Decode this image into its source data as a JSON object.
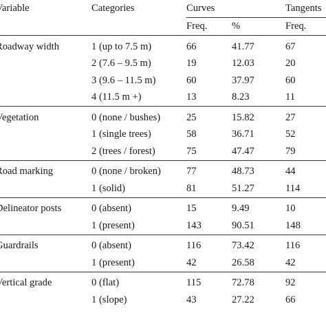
{
  "header": {
    "variable": "Variable",
    "categories": "Categories",
    "curves": "Curves",
    "tangents": "Tangents",
    "freq": "Freq.",
    "percent": "%"
  },
  "groups": [
    {
      "variable": "Roadway width",
      "rows": [
        {
          "category": "1 (up to 7.5 m)",
          "curves_freq": "66",
          "curves_pct": "41.77",
          "tangents_freq": "67"
        },
        {
          "category": "2 (7.6 – 9.5 m)",
          "curves_freq": "19",
          "curves_pct": "12.03",
          "tangents_freq": "20"
        },
        {
          "category": "3 (9.6 – 11.5 m)",
          "curves_freq": "60",
          "curves_pct": "37.97",
          "tangents_freq": "60"
        },
        {
          "category": "4 (11.5 m +)",
          "curves_freq": "13",
          "curves_pct": "8.23",
          "tangents_freq": "11"
        }
      ]
    },
    {
      "variable": "Vegetation",
      "rows": [
        {
          "category": "0 (none / bushes)",
          "curves_freq": "25",
          "curves_pct": "15.82",
          "tangents_freq": "27"
        },
        {
          "category": "1 (single trees)",
          "curves_freq": "58",
          "curves_pct": "36.71",
          "tangents_freq": "52"
        },
        {
          "category": "2 (trees / forest)",
          "curves_freq": "75",
          "curves_pct": "47.47",
          "tangents_freq": "79"
        }
      ]
    },
    {
      "variable": "Road marking",
      "rows": [
        {
          "category": "0 (none / broken)",
          "curves_freq": "77",
          "curves_pct": "48.73",
          "tangents_freq": "44"
        },
        {
          "category": "1 (solid)",
          "curves_freq": "81",
          "curves_pct": "51.27",
          "tangents_freq": "114"
        }
      ]
    },
    {
      "variable": "Delineator posts",
      "rows": [
        {
          "category": "0 (absent)",
          "curves_freq": "15",
          "curves_pct": "9.49",
          "tangents_freq": "10"
        },
        {
          "category": "1 (present)",
          "curves_freq": "143",
          "curves_pct": "90.51",
          "tangents_freq": "148"
        }
      ]
    },
    {
      "variable": "Guardrails",
      "rows": [
        {
          "category": "0 (absent)",
          "curves_freq": "116",
          "curves_pct": "73.42",
          "tangents_freq": "116"
        },
        {
          "category": "1 (present)",
          "curves_freq": "42",
          "curves_pct": "26.58",
          "tangents_freq": "42"
        }
      ]
    },
    {
      "variable": "Vertical grade",
      "rows": [
        {
          "category": "0 (flat)",
          "curves_freq": "115",
          "curves_pct": "72.78",
          "tangents_freq": "92"
        },
        {
          "category": "1 (slope)",
          "curves_freq": "43",
          "curves_pct": "27.22",
          "tangents_freq": "66"
        }
      ]
    }
  ]
}
